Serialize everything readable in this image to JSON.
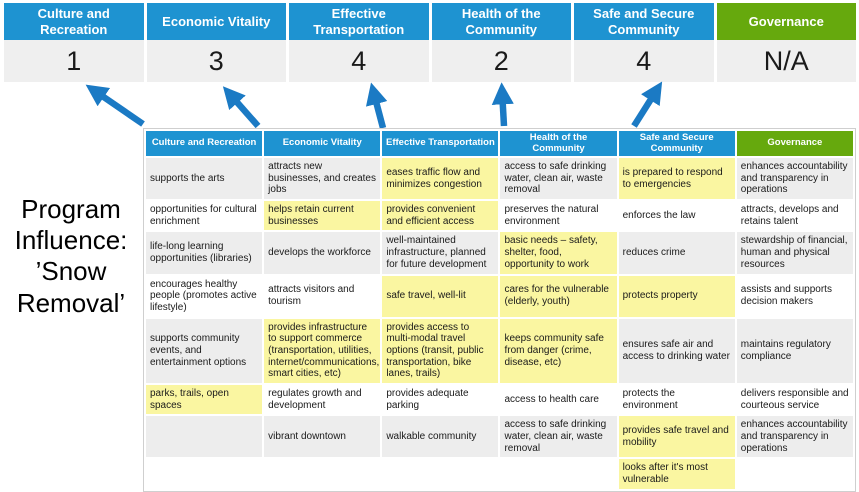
{
  "title": "Program Influence: ’Snow Removal’",
  "colors": {
    "header_blue": "#1E93D1",
    "header_green": "#66A90D",
    "highlight_yellow": "#FAF6A1",
    "row_gray": "#EDEDED",
    "score_bg": "#EFEFEF",
    "arrow_blue": "#1B7AC4"
  },
  "scoreboard": {
    "columns": [
      {
        "label": "Culture and Recreation",
        "score": "1"
      },
      {
        "label": "Economic Vitality",
        "score": "3"
      },
      {
        "label": "Effective Transportation",
        "score": "4"
      },
      {
        "label": "Health of the Community",
        "score": "2"
      },
      {
        "label": "Safe and Secure Community",
        "score": "4"
      },
      {
        "label": "Governance",
        "score": "N/A"
      }
    ]
  },
  "matrix": {
    "headers": [
      "Culture and Recreation",
      "Economic Vitality",
      "Effective Transportation",
      "Health of the Community",
      "Safe and Secure Community",
      "Governance"
    ],
    "rows": [
      [
        {
          "t": "supports the arts",
          "h": false
        },
        {
          "t": "attracts new businesses, and creates jobs",
          "h": false
        },
        {
          "t": "eases traffic flow and minimizes congestion",
          "h": true
        },
        {
          "t": "access to safe drinking water, clean air, waste removal",
          "h": false
        },
        {
          "t": "is prepared to respond to emergencies",
          "h": true
        },
        {
          "t": "enhances accountability and transparency in operations",
          "h": false
        }
      ],
      [
        {
          "t": "opportunities for cultural enrichment",
          "h": false
        },
        {
          "t": "helps retain current businesses",
          "h": true
        },
        {
          "t": "provides convenient and efficient access",
          "h": true
        },
        {
          "t": "preserves the natural environment",
          "h": false
        },
        {
          "t": "enforces the law",
          "h": false
        },
        {
          "t": "attracts, develops and retains talent",
          "h": false
        }
      ],
      [
        {
          "t": "life-long learning opportunities (libraries)",
          "h": false
        },
        {
          "t": "develops the workforce",
          "h": false
        },
        {
          "t": "well-maintained infrastructure, planned for future development",
          "h": false
        },
        {
          "t": "basic needs – safety, shelter, food, opportunity to work",
          "h": true
        },
        {
          "t": "reduces crime",
          "h": false
        },
        {
          "t": "stewardship of financial, human and physical resources",
          "h": false
        }
      ],
      [
        {
          "t": "encourages healthy people (promotes active lifestyle)",
          "h": false
        },
        {
          "t": "attracts visitors and tourism",
          "h": false
        },
        {
          "t": "safe travel, well-lit",
          "h": true
        },
        {
          "t": "cares for the vulnerable (elderly, youth)",
          "h": true
        },
        {
          "t": "protects property",
          "h": true
        },
        {
          "t": "assists and supports decision makers",
          "h": false
        }
      ],
      [
        {
          "t": "supports community events, and entertainment options",
          "h": false
        },
        {
          "t": "provides infrastructure to support commerce (transportation, utilities, internet/communications, smart cities, etc)",
          "h": true
        },
        {
          "t": "provides access to multi-modal travel options (transit, public transportation, bike lanes, trails)",
          "h": true
        },
        {
          "t": "keeps community safe from danger (crime, disease, etc)",
          "h": true
        },
        {
          "t": "ensures safe air and access to drinking water",
          "h": false
        },
        {
          "t": "maintains regulatory compliance",
          "h": false
        }
      ],
      [
        {
          "t": "parks, trails, open spaces",
          "h": true
        },
        {
          "t": "regulates growth and development",
          "h": false
        },
        {
          "t": "provides adequate parking",
          "h": false
        },
        {
          "t": "access to health care",
          "h": false
        },
        {
          "t": "protects the environment",
          "h": false
        },
        {
          "t": "delivers responsible and courteous service",
          "h": false
        }
      ],
      [
        {
          "t": "",
          "h": false
        },
        {
          "t": "vibrant downtown",
          "h": false
        },
        {
          "t": "walkable community",
          "h": false
        },
        {
          "t": "access to safe drinking water, clean air, waste removal",
          "h": false
        },
        {
          "t": "provides safe travel and mobility",
          "h": true
        },
        {
          "t": "enhances accountability and transparency in operations",
          "h": false
        }
      ],
      [
        {
          "t": "",
          "h": false
        },
        {
          "t": "",
          "h": false
        },
        {
          "t": "",
          "h": false
        },
        {
          "t": "",
          "h": false
        },
        {
          "t": "looks after it's most vulnerable",
          "h": true
        },
        {
          "t": "",
          "h": false
        }
      ]
    ]
  }
}
